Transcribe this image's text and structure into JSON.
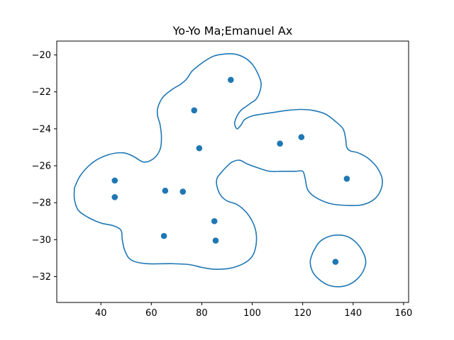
{
  "chart_data": {
    "type": "scatter",
    "title": "Yo-Yo Ma;Emanuel Ax",
    "xlabel": "",
    "ylabel": "",
    "xlim": [
      22.5,
      162
    ],
    "ylim": [
      -33.4,
      -19.25
    ],
    "xticks": [
      40,
      60,
      80,
      100,
      120,
      140,
      160
    ],
    "yticks": [
      -32,
      -30,
      -28,
      -26,
      -24,
      -22,
      -20
    ],
    "grid": false,
    "legend": "none",
    "color": "#1f77b4",
    "points": [
      {
        "x": 45.5,
        "y": -26.8
      },
      {
        "x": 45.5,
        "y": -27.7
      },
      {
        "x": 65.5,
        "y": -27.35
      },
      {
        "x": 72.5,
        "y": -27.4
      },
      {
        "x": 65.0,
        "y": -29.8
      },
      {
        "x": 77.0,
        "y": -23.0
      },
      {
        "x": 79.0,
        "y": -25.05
      },
      {
        "x": 85.0,
        "y": -29.0
      },
      {
        "x": 85.5,
        "y": -30.05
      },
      {
        "x": 91.5,
        "y": -21.35
      },
      {
        "x": 111.0,
        "y": -24.8
      },
      {
        "x": 119.5,
        "y": -24.45
      },
      {
        "x": 137.5,
        "y": -26.7
      },
      {
        "x": 133.0,
        "y": -31.2
      }
    ],
    "contours": [
      {
        "name": "",
        "path": [
          [
            29.5,
            -27.2
          ],
          [
            32,
            -26.5
          ],
          [
            37,
            -25.8
          ],
          [
            43,
            -25.4
          ],
          [
            49,
            -25.3
          ],
          [
            53,
            -25.5
          ],
          [
            57,
            -25.8
          ],
          [
            61,
            -25.6
          ],
          [
            63.5,
            -25.1
          ],
          [
            64,
            -24.5
          ],
          [
            63.5,
            -23.8
          ],
          [
            62.5,
            -23.3
          ],
          [
            62.5,
            -22.9
          ],
          [
            64,
            -22.4
          ],
          [
            66,
            -22.1
          ],
          [
            69,
            -21.8
          ],
          [
            71.5,
            -21.6
          ],
          [
            74,
            -21.3
          ],
          [
            76,
            -20.9
          ],
          [
            78.5,
            -20.6
          ],
          [
            81.5,
            -20.3
          ],
          [
            85,
            -20.05
          ],
          [
            89,
            -19.95
          ],
          [
            93,
            -19.95
          ],
          [
            97,
            -20.15
          ],
          [
            100,
            -20.5
          ],
          [
            102,
            -20.95
          ],
          [
            103.5,
            -21.5
          ],
          [
            103,
            -22.0
          ],
          [
            101.5,
            -22.4
          ],
          [
            99.5,
            -22.6
          ],
          [
            97.5,
            -22.8
          ],
          [
            95.5,
            -23.0
          ],
          [
            94,
            -23.3
          ],
          [
            93,
            -23.7
          ],
          [
            94,
            -24.0
          ],
          [
            95.5,
            -23.8
          ],
          [
            97,
            -23.5
          ],
          [
            100,
            -23.3
          ],
          [
            104,
            -23.2
          ],
          [
            109,
            -23.1
          ],
          [
            114,
            -23.0
          ],
          [
            119,
            -22.95
          ],
          [
            124,
            -23.0
          ],
          [
            129,
            -23.2
          ],
          [
            133,
            -23.6
          ],
          [
            136,
            -24.0
          ],
          [
            137,
            -24.5
          ],
          [
            137.5,
            -25.0
          ],
          [
            139,
            -25.2
          ],
          [
            142,
            -25.3
          ],
          [
            146,
            -25.6
          ],
          [
            149.5,
            -26.1
          ],
          [
            151.5,
            -26.7
          ],
          [
            151,
            -27.3
          ],
          [
            148.5,
            -27.8
          ],
          [
            144,
            -28.1
          ],
          [
            138.5,
            -28.15
          ],
          [
            131,
            -28.05
          ],
          [
            125,
            -27.7
          ],
          [
            122,
            -27.3
          ],
          [
            121,
            -26.7
          ],
          [
            120,
            -26.3
          ],
          [
            117,
            -26.3
          ],
          [
            112,
            -26.3
          ],
          [
            107,
            -26.3
          ],
          [
            102,
            -26.1
          ],
          [
            98,
            -25.9
          ],
          [
            95,
            -25.7
          ],
          [
            92,
            -25.8
          ],
          [
            89.5,
            -26.1
          ],
          [
            87.5,
            -26.4
          ],
          [
            86,
            -26.7
          ],
          [
            86,
            -27.1
          ],
          [
            87.5,
            -27.6
          ],
          [
            90,
            -27.9
          ],
          [
            94,
            -28.1
          ],
          [
            97.5,
            -28.5
          ],
          [
            100,
            -29.0
          ],
          [
            101.5,
            -29.6
          ],
          [
            101.5,
            -30.3
          ],
          [
            100,
            -30.9
          ],
          [
            96.5,
            -31.3
          ],
          [
            91,
            -31.55
          ],
          [
            85,
            -31.6
          ],
          [
            80,
            -31.5
          ],
          [
            75,
            -31.35
          ],
          [
            68,
            -31.3
          ],
          [
            58,
            -31.3
          ],
          [
            52,
            -31.1
          ],
          [
            49.5,
            -30.6
          ],
          [
            48.5,
            -30.0
          ],
          [
            48,
            -29.5
          ],
          [
            45,
            -29.25
          ],
          [
            40,
            -29.1
          ],
          [
            35,
            -28.8
          ],
          [
            31,
            -28.4
          ],
          [
            29.5,
            -27.8
          ],
          [
            29.5,
            -27.2
          ]
        ]
      },
      {
        "name": "",
        "path": [
          [
            124,
            -30.7
          ],
          [
            126.5,
            -30.15
          ],
          [
            130,
            -29.85
          ],
          [
            134,
            -29.75
          ],
          [
            138,
            -29.85
          ],
          [
            141.5,
            -30.2
          ],
          [
            144,
            -30.7
          ],
          [
            145,
            -31.2
          ],
          [
            144,
            -31.7
          ],
          [
            141.5,
            -32.15
          ],
          [
            138,
            -32.45
          ],
          [
            134,
            -32.55
          ],
          [
            130,
            -32.45
          ],
          [
            126.5,
            -32.15
          ],
          [
            124,
            -31.75
          ],
          [
            123,
            -31.2
          ],
          [
            124,
            -30.7
          ]
        ]
      }
    ]
  }
}
